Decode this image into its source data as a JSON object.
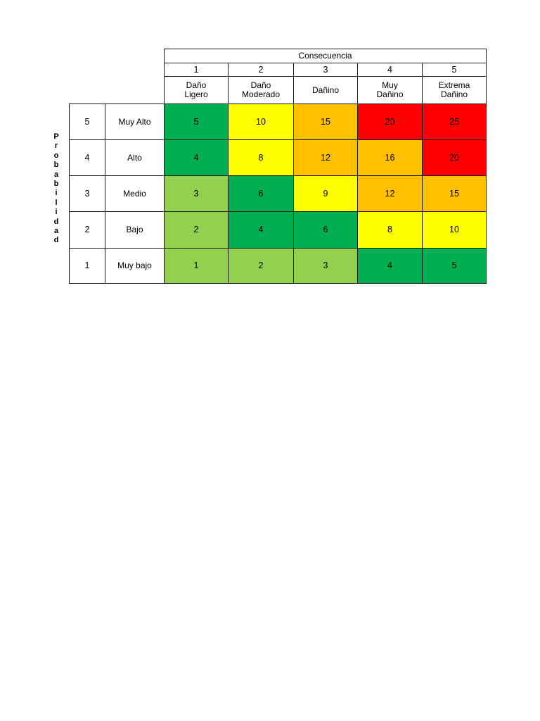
{
  "matrix": {
    "title": "Consecuencia",
    "y_axis_label": "Probabilidad",
    "columns": [
      {
        "num": "1",
        "label": "Daño Ligero"
      },
      {
        "num": "2",
        "label": "Daño Moderado"
      },
      {
        "num": "3",
        "label": "Dañino"
      },
      {
        "num": "4",
        "label": "Muy Dañino"
      },
      {
        "num": "5",
        "label": "Extrema Dañino"
      }
    ],
    "rows": [
      {
        "num": "5",
        "label": "Muy Alto",
        "values": [
          "5",
          "10",
          "15",
          "20",
          "25"
        ],
        "colors": [
          "#00B050",
          "#FFFF00",
          "#FFC000",
          "#FF0000",
          "#FF0000"
        ]
      },
      {
        "num": "4",
        "label": "Alto",
        "values": [
          "4",
          "8",
          "12",
          "16",
          "20"
        ],
        "colors": [
          "#00B050",
          "#FFFF00",
          "#FFC000",
          "#FFC000",
          "#FF0000"
        ]
      },
      {
        "num": "3",
        "label": "Medio",
        "values": [
          "3",
          "6",
          "9",
          "12",
          "15"
        ],
        "colors": [
          "#92D050",
          "#00B050",
          "#FFFF00",
          "#FFC000",
          "#FFC000"
        ]
      },
      {
        "num": "2",
        "label": "Bajo",
        "values": [
          "2",
          "4",
          "6",
          "8",
          "10"
        ],
        "colors": [
          "#92D050",
          "#00B050",
          "#00B050",
          "#FFFF00",
          "#FFFF00"
        ]
      },
      {
        "num": "1",
        "label": "Muy bajo",
        "values": [
          "1",
          "2",
          "3",
          "4",
          "5"
        ],
        "colors": [
          "#92D050",
          "#92D050",
          "#92D050",
          "#00B050",
          "#00B050"
        ]
      }
    ],
    "palette": {
      "dark_green": "#00B050",
      "light_green": "#92D050",
      "yellow": "#FFFF00",
      "orange": "#FFC000",
      "red": "#FF0000"
    }
  }
}
